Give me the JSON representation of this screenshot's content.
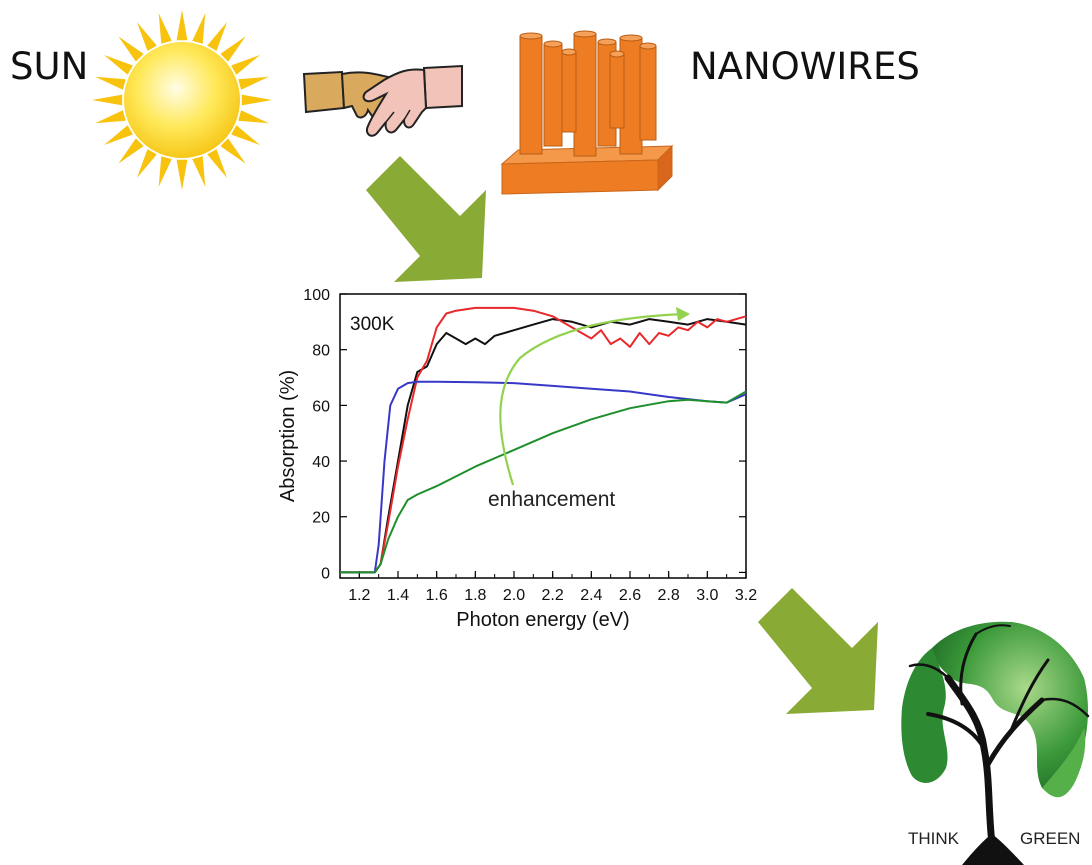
{
  "labels": {
    "sun": "SUN",
    "nanowires": "NANOWIRES",
    "think": "THINK",
    "green": "GREEN"
  },
  "icons": {
    "sun": "sun-icon",
    "handshake": "handshake-icon",
    "nanowires": "nanowire-array-icon",
    "arrow1": "arrow-down-right-icon",
    "arrow2": "arrow-down-right-icon",
    "globe": "globe-tree-icon"
  },
  "colors": {
    "arrow": "#8AAA36",
    "sun_rays": "#F7C30F",
    "sun_core": "#FFE95A",
    "nanowire": "#EE7C22",
    "globe_green": "#3C9A3A",
    "black_series": "#111111",
    "red_series": "#E8282B",
    "blue_series": "#3838C8",
    "green_series": "#1F8F2C",
    "enhancement_arrow": "#93D24F"
  },
  "chart_data": {
    "type": "line",
    "title": "",
    "annotation": "300K",
    "enhancement_label": "enhancement",
    "xlabel": "Photon energy (eV)",
    "ylabel": "Absorption (%)",
    "xlim": [
      1.1,
      3.2
    ],
    "ylim": [
      -2,
      100
    ],
    "xticks": [
      "1.2",
      "1.4",
      "1.6",
      "1.8",
      "2.0",
      "2.2",
      "2.4",
      "2.6",
      "2.8",
      "3.0",
      "3.2"
    ],
    "yticks": [
      "0",
      "20",
      "40",
      "60",
      "80",
      "100"
    ],
    "grid": false,
    "series": [
      {
        "color": "#111111",
        "x": [
          1.1,
          1.28,
          1.31,
          1.35,
          1.4,
          1.45,
          1.5,
          1.55,
          1.6,
          1.65,
          1.7,
          1.75,
          1.8,
          1.85,
          1.9,
          2.0,
          2.1,
          2.2,
          2.3,
          2.4,
          2.5,
          2.6,
          2.7,
          2.8,
          2.9,
          3.0,
          3.1,
          3.2
        ],
        "y": [
          0,
          0,
          3,
          20,
          40,
          60,
          72,
          74,
          82,
          86,
          84,
          82,
          84,
          82,
          85,
          87,
          89,
          91,
          90,
          88,
          90,
          89,
          91,
          90,
          89,
          91,
          90,
          89
        ]
      },
      {
        "color": "#E8282B",
        "x": [
          1.1,
          1.28,
          1.31,
          1.35,
          1.4,
          1.45,
          1.5,
          1.55,
          1.6,
          1.65,
          1.7,
          1.8,
          1.9,
          2.0,
          2.1,
          2.2,
          2.3,
          2.35,
          2.4,
          2.45,
          2.5,
          2.55,
          2.6,
          2.65,
          2.7,
          2.75,
          2.8,
          2.85,
          2.9,
          2.95,
          3.0,
          3.05,
          3.1,
          3.2
        ],
        "y": [
          0,
          0,
          3,
          18,
          38,
          55,
          70,
          76,
          88,
          93,
          94,
          95,
          95,
          95,
          94,
          92,
          88,
          86,
          84,
          87,
          82,
          84,
          81,
          86,
          82,
          86,
          85,
          88,
          87,
          90,
          88,
          91,
          90,
          92
        ]
      },
      {
        "color": "#3838C8",
        "x": [
          1.1,
          1.28,
          1.3,
          1.33,
          1.36,
          1.4,
          1.45,
          1.5,
          1.6,
          1.8,
          2.0,
          2.2,
          2.4,
          2.6,
          2.8,
          3.0,
          3.1,
          3.2
        ],
        "y": [
          0,
          0,
          10,
          40,
          60,
          66,
          68,
          68.5,
          68.5,
          68.3,
          68,
          67,
          66,
          65,
          63,
          61.5,
          61,
          64
        ]
      },
      {
        "color": "#1F8F2C",
        "x": [
          1.1,
          1.28,
          1.31,
          1.35,
          1.4,
          1.45,
          1.5,
          1.6,
          1.8,
          2.0,
          2.2,
          2.4,
          2.6,
          2.8,
          2.9,
          3.0,
          3.1,
          3.2
        ],
        "y": [
          0,
          0,
          3,
          12,
          20,
          26,
          28,
          31,
          38,
          44,
          50,
          55,
          59,
          61.5,
          62,
          61.5,
          61,
          65
        ]
      }
    ]
  }
}
